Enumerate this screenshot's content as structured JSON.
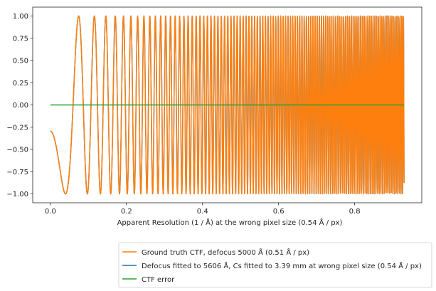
{
  "chart_data": {
    "type": "line",
    "title": "",
    "xlabel": "Apparent Resolution (1 / Å) at the wrong pixel size (0.54 Å / px)",
    "ylabel": "",
    "xlim": [
      -0.0465,
      0.9765
    ],
    "ylim": [
      -1.1,
      1.1
    ],
    "xticks": [
      0.0,
      0.2,
      0.4,
      0.6,
      0.8
    ],
    "xtick_labels": [
      "0.0",
      "0.2",
      "0.4",
      "0.6",
      "0.8"
    ],
    "yticks": [
      -1.0,
      -0.75,
      -0.5,
      -0.25,
      0.0,
      0.25,
      0.5,
      0.75,
      1.0
    ],
    "ytick_labels": [
      "−1.00",
      "−0.75",
      "−0.50",
      "−0.25",
      "0.00",
      "0.25",
      "0.50",
      "0.75",
      "1.00"
    ],
    "grid": false,
    "legend_position": "below-right",
    "x_range": [
      0.0,
      0.93
    ],
    "series": [
      {
        "name": "Ground truth CTF, defocus 5000 Å (0.51 Å / px)",
        "color": "#ff7f0e",
        "kind": "ctf",
        "defocus_angstrom": 5000,
        "pixel_size_angstrom": 0.51
      },
      {
        "name": "Defocus fitted to 5606 Å, Cs fitted to 3.39 mm at wrong pixel size (0.54 Å / px)",
        "color": "#1f77b4",
        "kind": "ctf",
        "defocus_angstrom": 5606,
        "cs_mm": 3.39,
        "pixel_size_angstrom": 0.54
      },
      {
        "name": "CTF error",
        "color": "#2ca02c",
        "kind": "constant",
        "value": 0.0
      }
    ]
  }
}
